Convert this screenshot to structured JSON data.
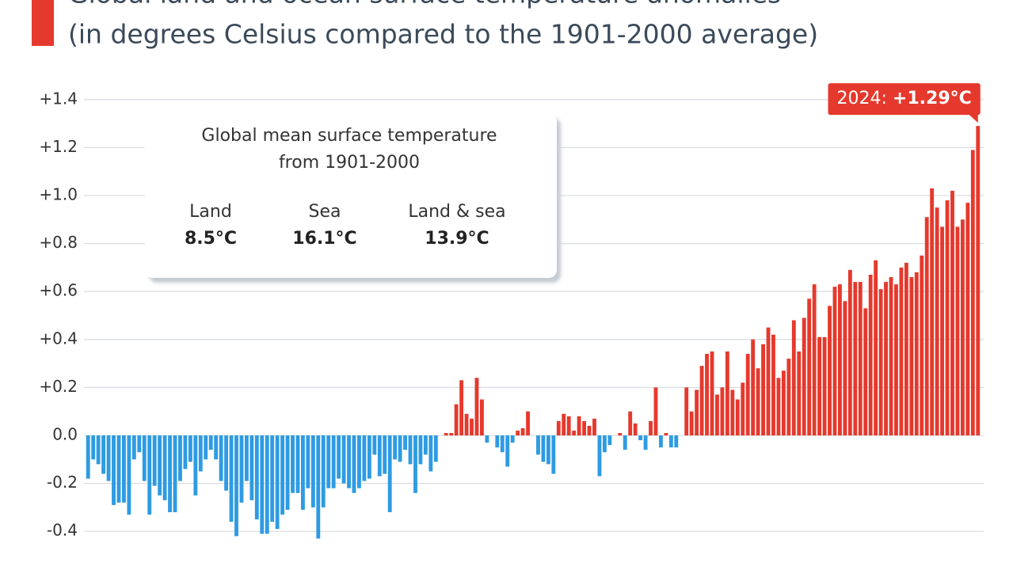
{
  "chart_data": {
    "type": "bar",
    "title": "Global land and ocean surface temperature anomalies",
    "subtitle": "(in degrees Celsius compared to the 1901-2000 average)",
    "positive_color": "#e5392d",
    "negative_color": "#2e9be2",
    "grid": true,
    "ylim": [
      -0.56,
      1.5
    ],
    "yticks": [
      {
        "value": -0.4,
        "label": "-0.4"
      },
      {
        "value": -0.2,
        "label": "-0.2"
      },
      {
        "value": 0,
        "label": "0.0"
      },
      {
        "value": 0.2,
        "label": "+0.2"
      },
      {
        "value": 0.4,
        "label": "+0.4"
      },
      {
        "value": 0.6,
        "label": "+0.6"
      },
      {
        "value": 0.8,
        "label": "+0.8"
      },
      {
        "value": 1.0,
        "label": "+1.0"
      },
      {
        "value": 1.2,
        "label": "+1.2"
      },
      {
        "value": 1.4,
        "label": "+1.4"
      }
    ],
    "values": [
      -0.18,
      -0.1,
      -0.12,
      -0.16,
      -0.19,
      -0.29,
      -0.28,
      -0.28,
      -0.33,
      -0.1,
      -0.07,
      -0.19,
      -0.33,
      -0.21,
      -0.25,
      -0.27,
      -0.32,
      -0.32,
      -0.19,
      -0.14,
      -0.11,
      -0.25,
      -0.15,
      -0.1,
      -0.06,
      -0.1,
      -0.19,
      -0.23,
      -0.36,
      -0.42,
      -0.28,
      -0.19,
      -0.27,
      -0.35,
      -0.41,
      -0.41,
      -0.36,
      -0.39,
      -0.33,
      -0.31,
      -0.24,
      -0.24,
      -0.31,
      -0.22,
      -0.3,
      -0.43,
      -0.3,
      -0.22,
      -0.22,
      -0.18,
      -0.2,
      -0.22,
      -0.24,
      -0.22,
      -0.19,
      -0.18,
      -0.08,
      -0.17,
      -0.16,
      -0.32,
      -0.1,
      -0.11,
      -0.06,
      -0.12,
      -0.24,
      -0.12,
      -0.08,
      -0.15,
      -0.11,
      0.0,
      0.01,
      0.01,
      0.13,
      0.23,
      0.09,
      0.07,
      0.24,
      0.15,
      -0.03,
      0.0,
      -0.05,
      -0.07,
      -0.13,
      -0.03,
      0.02,
      0.03,
      0.1,
      0.0,
      -0.08,
      -0.11,
      -0.12,
      -0.16,
      0.06,
      0.09,
      0.08,
      0.02,
      0.08,
      0.06,
      0.04,
      0.07,
      -0.17,
      -0.07,
      -0.04,
      0.0,
      0.01,
      -0.06,
      0.1,
      0.05,
      -0.02,
      -0.06,
      0.06,
      0.2,
      -0.05,
      0.01,
      -0.05,
      -0.05,
      0.0,
      0.2,
      0.1,
      0.19,
      0.29,
      0.34,
      0.35,
      0.17,
      0.2,
      0.35,
      0.19,
      0.15,
      0.22,
      0.34,
      0.4,
      0.28,
      0.38,
      0.45,
      0.42,
      0.24,
      0.27,
      0.32,
      0.48,
      0.35,
      0.49,
      0.57,
      0.63,
      0.41,
      0.41,
      0.54,
      0.62,
      0.63,
      0.56,
      0.69,
      0.64,
      0.64,
      0.53,
      0.67,
      0.73,
      0.61,
      0.64,
      0.66,
      0.63,
      0.7,
      0.72,
      0.66,
      0.68,
      0.75,
      0.91,
      1.03,
      0.95,
      0.87,
      0.98,
      1.02,
      0.87,
      0.9,
      0.97,
      1.19,
      1.29
    ],
    "annotation": {
      "year": "2024:",
      "value_label": "+1.29°C"
    },
    "inset": {
      "title_line1": "Global mean surface temperature",
      "title_line2": "from 1901-2000",
      "items": [
        {
          "label": "Land",
          "value": "8.5°C"
        },
        {
          "label": "Sea",
          "value": "16.1°C"
        },
        {
          "label": "Land & sea",
          "value": "13.9°C"
        }
      ]
    }
  }
}
